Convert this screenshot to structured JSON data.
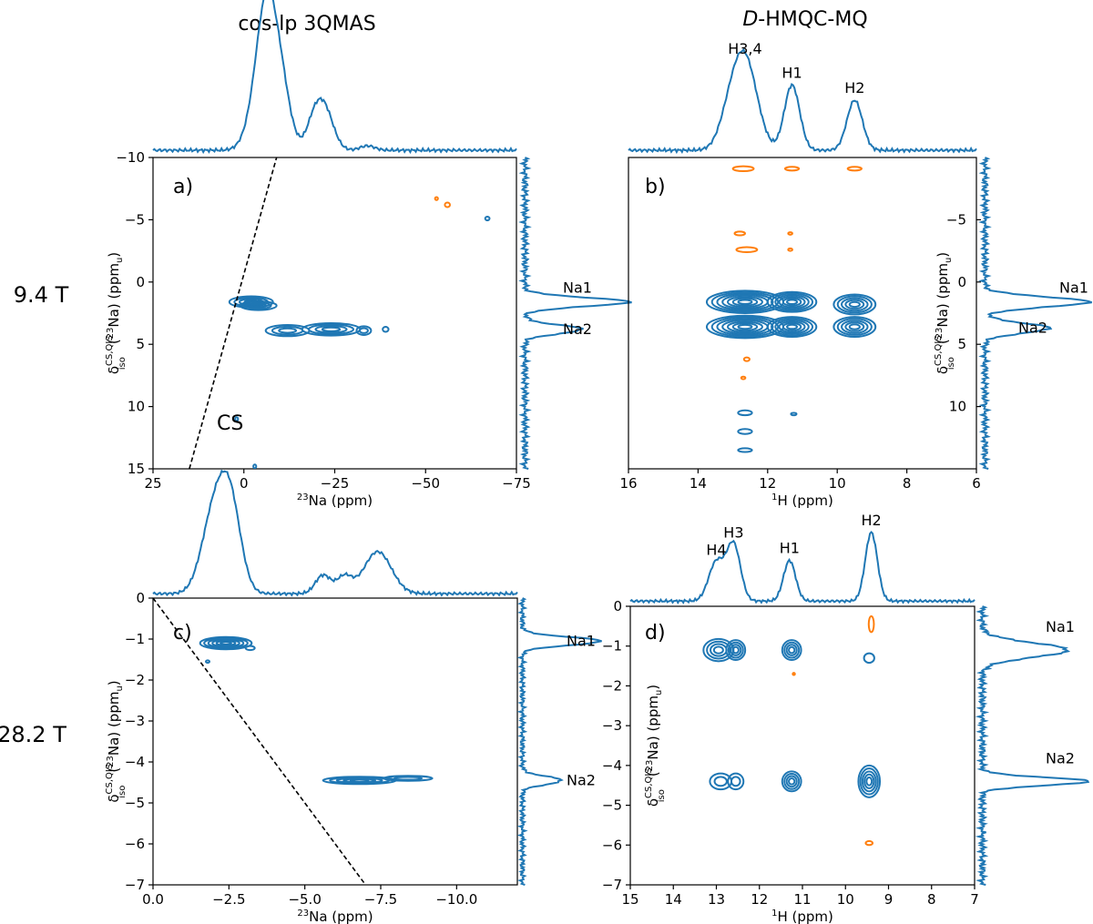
{
  "figure": {
    "column_titles": {
      "left": "cos-lp 3QMAS",
      "right_prefix": "D",
      "right_suffix": "-HMQC-MQ"
    },
    "row_labels": [
      "9.4 T",
      "28.2 T"
    ]
  },
  "colors": {
    "positive": "#1f77b4",
    "negative": "#ff7f0e",
    "cs_line": "#000000"
  },
  "chart_data": [
    {
      "type": "contour",
      "panel": "a)",
      "xlabel_pre": "23",
      "xlabel_post": "Na (ppm)",
      "ylabel_main": "δ",
      "ylabel_sub": "iso",
      "ylabel_sup": "CS,QIS",
      "ylabel_mid": "(",
      "ylabel_iso": "23",
      "ylabel_end": "Na) (ppm",
      "ylabel_unit_sub": "u",
      "ylabel_close": ")",
      "xlim": [
        25,
        -75
      ],
      "ylim": [
        -10,
        15
      ],
      "xticks": [
        "25",
        "0",
        "−25",
        "−50",
        "−75"
      ],
      "xtick_values": [
        25,
        0,
        -25,
        -50,
        -75
      ],
      "yticks": [
        "−10",
        "−5",
        "0",
        "5",
        "10",
        "15"
      ],
      "ytick_values": [
        -10,
        -5,
        0,
        5,
        10,
        15
      ],
      "cs_line": {
        "label": "CS",
        "points": [
          [
            15,
            15
          ],
          [
            -9,
            -10
          ]
        ]
      },
      "peaks": [
        {
          "x": -2,
          "y": 1.6,
          "rx": 6,
          "ry": 0.45,
          "rings": 4,
          "sign": "pos"
        },
        {
          "x": -4,
          "y": 1.9,
          "rx": 5,
          "ry": 0.35,
          "rings": 3,
          "sign": "pos"
        },
        {
          "x": -12,
          "y": 3.9,
          "rx": 6,
          "ry": 0.45,
          "rings": 3,
          "sign": "pos"
        },
        {
          "x": -24,
          "y": 3.8,
          "rx": 8,
          "ry": 0.5,
          "rings": 4,
          "sign": "pos"
        },
        {
          "x": -33,
          "y": 3.9,
          "rx": 2,
          "ry": 0.35,
          "rings": 2,
          "sign": "pos"
        },
        {
          "x": -39,
          "y": 3.8,
          "rx": 0.8,
          "ry": 0.2,
          "rings": 1,
          "sign": "pos"
        },
        {
          "x": 2,
          "y": 11,
          "rx": 0.4,
          "ry": 0.15,
          "rings": 1,
          "sign": "pos"
        },
        {
          "x": -3,
          "y": 14.8,
          "rx": 0.4,
          "ry": 0.15,
          "rings": 1,
          "sign": "pos"
        },
        {
          "x": -67,
          "y": -5.1,
          "rx": 0.6,
          "ry": 0.15,
          "rings": 1,
          "sign": "pos"
        },
        {
          "x": -53,
          "y": -6.7,
          "rx": 0.4,
          "ry": 0.12,
          "rings": 1,
          "sign": "neg"
        },
        {
          "x": -56,
          "y": -6.2,
          "rx": 0.7,
          "ry": 0.18,
          "rings": 1,
          "sign": "neg"
        }
      ],
      "top_projection": {
        "baseline": 0.02,
        "peaks": [
          {
            "x": -6,
            "h": 1.0,
            "w": 2.5
          },
          {
            "x": -9.5,
            "h": 0.88,
            "w": 2.8
          },
          {
            "x": -4,
            "h": 0.45,
            "w": 3
          },
          {
            "x": -22,
            "h": 0.48,
            "w": 2.5
          },
          {
            "x": -19,
            "h": 0.22,
            "w": 2
          },
          {
            "x": -34,
            "h": 0.05,
            "w": 2
          }
        ]
      },
      "side_projection": {
        "peaks": [
          {
            "y": 1.6,
            "h": 1.0,
            "w": 0.35,
            "label": "Na1"
          },
          {
            "y": 3.8,
            "h": 0.55,
            "w": 0.35,
            "label": "Na2"
          }
        ]
      }
    },
    {
      "type": "contour",
      "panel": "b)",
      "xlabel_pre": "1",
      "xlabel_post": "H (ppm)",
      "ylabel_main": "δ",
      "ylabel_sub": "iso",
      "ylabel_sup": "CS,QIS",
      "ylabel_mid": "(",
      "ylabel_iso": "23",
      "ylabel_end": "Na) (ppm",
      "ylabel_unit_sub": "u",
      "ylabel_close": ")",
      "xlim": [
        16,
        6
      ],
      "ylim": [
        -10,
        15
      ],
      "xticks": [
        "16",
        "14",
        "12",
        "10",
        "8",
        "6"
      ],
      "xtick_values": [
        16,
        14,
        12,
        10,
        8,
        6
      ],
      "yticks": [
        "−5",
        "0",
        "5",
        "10"
      ],
      "ytick_values": [
        -5,
        0,
        5,
        10
      ],
      "peaks": [
        {
          "x": 12.65,
          "y": 1.6,
          "rx": 1.1,
          "ry": 0.9,
          "rings": 7,
          "sign": "pos"
        },
        {
          "x": 12.65,
          "y": 3.6,
          "rx": 1.1,
          "ry": 0.9,
          "rings": 7,
          "sign": "pos"
        },
        {
          "x": 11.3,
          "y": 1.6,
          "rx": 0.7,
          "ry": 0.8,
          "rings": 6,
          "sign": "pos"
        },
        {
          "x": 11.3,
          "y": 3.6,
          "rx": 0.7,
          "ry": 0.8,
          "rings": 6,
          "sign": "pos"
        },
        {
          "x": 9.5,
          "y": 1.8,
          "rx": 0.6,
          "ry": 0.8,
          "rings": 5,
          "sign": "pos"
        },
        {
          "x": 9.5,
          "y": 3.6,
          "rx": 0.6,
          "ry": 0.8,
          "rings": 5,
          "sign": "pos"
        },
        {
          "x": 12.65,
          "y": 10.5,
          "rx": 0.2,
          "ry": 0.2,
          "rings": 1,
          "sign": "pos"
        },
        {
          "x": 12.65,
          "y": 12,
          "rx": 0.2,
          "ry": 0.2,
          "rings": 1,
          "sign": "pos"
        },
        {
          "x": 12.65,
          "y": 13.5,
          "rx": 0.2,
          "ry": 0.15,
          "rings": 1,
          "sign": "pos"
        },
        {
          "x": 11.25,
          "y": 10.6,
          "rx": 0.08,
          "ry": 0.1,
          "rings": 1,
          "sign": "pos"
        },
        {
          "x": 12.7,
          "y": -9.1,
          "rx": 0.3,
          "ry": 0.2,
          "rings": 1,
          "sign": "neg"
        },
        {
          "x": 11.3,
          "y": -9.1,
          "rx": 0.2,
          "ry": 0.15,
          "rings": 1,
          "sign": "neg"
        },
        {
          "x": 9.5,
          "y": -9.1,
          "rx": 0.2,
          "ry": 0.15,
          "rings": 1,
          "sign": "neg"
        },
        {
          "x": 12.8,
          "y": -3.9,
          "rx": 0.15,
          "ry": 0.15,
          "rings": 1,
          "sign": "neg"
        },
        {
          "x": 12.6,
          "y": -2.6,
          "rx": 0.3,
          "ry": 0.2,
          "rings": 1,
          "sign": "neg"
        },
        {
          "x": 11.35,
          "y": -3.9,
          "rx": 0.06,
          "ry": 0.1,
          "rings": 1,
          "sign": "neg"
        },
        {
          "x": 11.35,
          "y": -2.6,
          "rx": 0.06,
          "ry": 0.1,
          "rings": 1,
          "sign": "neg"
        },
        {
          "x": 12.6,
          "y": 6.2,
          "rx": 0.08,
          "ry": 0.15,
          "rings": 1,
          "sign": "neg"
        },
        {
          "x": 12.7,
          "y": 7.7,
          "rx": 0.06,
          "ry": 0.1,
          "rings": 1,
          "sign": "neg"
        }
      ],
      "top_projection": {
        "baseline": 0.02,
        "peaks": [
          {
            "x": 12.65,
            "h": 1.0,
            "w": 0.35,
            "label": "H3,4"
          },
          {
            "x": 13.1,
            "h": 0.3,
            "w": 0.3
          },
          {
            "x": 11.3,
            "h": 0.73,
            "w": 0.22,
            "label": "H1"
          },
          {
            "x": 9.5,
            "h": 0.56,
            "w": 0.22,
            "label": "H2"
          }
        ]
      },
      "side_projection": {
        "peaks": [
          {
            "y": 1.6,
            "h": 1.0,
            "w": 0.4,
            "label": "Na1"
          },
          {
            "y": 3.7,
            "h": 0.62,
            "w": 0.4,
            "label": "Na2"
          }
        ]
      }
    },
    {
      "type": "contour",
      "panel": "c)",
      "xlabel_pre": "23",
      "xlabel_post": "Na (ppm)",
      "ylabel_main": "δ",
      "ylabel_sub": "iso",
      "ylabel_sup": "CS,QIS",
      "ylabel_mid": "(",
      "ylabel_iso": "23",
      "ylabel_end": "Na) (ppm",
      "ylabel_unit_sub": "u",
      "ylabel_close": ")",
      "xlim": [
        0,
        -12
      ],
      "ylim": [
        0,
        -7
      ],
      "xticks": [
        "0.0",
        "−2.5",
        "−5.0",
        "−7.5",
        "−10.0"
      ],
      "xtick_values": [
        0,
        -2.5,
        -5,
        -7.5,
        -10
      ],
      "yticks": [
        "0",
        "−1",
        "−2",
        "−3",
        "−4",
        "−5",
        "−6",
        "−7"
      ],
      "ytick_values": [
        0,
        -1,
        -2,
        -3,
        -4,
        -5,
        -6,
        -7
      ],
      "cs_line": {
        "label": "",
        "points": [
          [
            0,
            0
          ],
          [
            -7,
            -7
          ]
        ]
      },
      "peaks": [
        {
          "x": -2.4,
          "y": -1.1,
          "rx": 0.85,
          "ry": 0.15,
          "rings": 6,
          "sign": "pos"
        },
        {
          "x": -3.2,
          "y": -1.22,
          "rx": 0.15,
          "ry": 0.05,
          "rings": 1,
          "sign": "pos"
        },
        {
          "x": -6.8,
          "y": -4.45,
          "rx": 1.2,
          "ry": 0.09,
          "rings": 5,
          "sign": "pos"
        },
        {
          "x": -8.4,
          "y": -4.4,
          "rx": 0.8,
          "ry": 0.06,
          "rings": 2,
          "sign": "pos"
        },
        {
          "x": -1.8,
          "y": -1.55,
          "rx": 0.06,
          "ry": 0.03,
          "rings": 1,
          "sign": "pos"
        }
      ],
      "top_projection": {
        "baseline": 0.02,
        "peaks": [
          {
            "x": -2.0,
            "h": 0.92,
            "w": 0.4
          },
          {
            "x": -2.55,
            "h": 0.98,
            "w": 0.35
          },
          {
            "x": -5.6,
            "h": 0.22,
            "w": 0.25
          },
          {
            "x": -6.3,
            "h": 0.2,
            "w": 0.25
          },
          {
            "x": -7.4,
            "h": 0.5,
            "w": 0.45
          }
        ]
      },
      "side_projection": {
        "peaks": [
          {
            "y": -1.05,
            "h": 1.0,
            "w": 0.1,
            "label": "Na1"
          },
          {
            "y": -4.45,
            "h": 0.5,
            "w": 0.1,
            "label": "Na2"
          }
        ]
      }
    },
    {
      "type": "contour",
      "panel": "d)",
      "xlabel_pre": "1",
      "xlabel_post": "H (ppm)",
      "ylabel_main": "δ",
      "ylabel_sub": "iso",
      "ylabel_sup": "CS,QIS",
      "ylabel_mid": "(",
      "ylabel_iso": "23",
      "ylabel_end": "Na) (ppm",
      "ylabel_unit_sub": "u",
      "ylabel_close": ")",
      "xlim": [
        15,
        7
      ],
      "ylim": [
        0,
        -7
      ],
      "xticks": [
        "15",
        "14",
        "13",
        "12",
        "11",
        "10",
        "9",
        "8",
        "7"
      ],
      "xtick_values": [
        15,
        14,
        13,
        12,
        11,
        10,
        9,
        8,
        7
      ],
      "yticks": [
        "0",
        "−1",
        "−2",
        "−3",
        "−4",
        "−5",
        "−6",
        "−7"
      ],
      "ytick_values": [
        0,
        -1,
        -2,
        -3,
        -4,
        -5,
        -6,
        -7
      ],
      "peaks": [
        {
          "x": 12.95,
          "y": -1.1,
          "rx": 0.35,
          "ry": 0.28,
          "rings": 4,
          "sign": "pos"
        },
        {
          "x": 12.55,
          "y": -1.1,
          "rx": 0.22,
          "ry": 0.25,
          "rings": 4,
          "sign": "pos"
        },
        {
          "x": 11.25,
          "y": -1.1,
          "rx": 0.22,
          "ry": 0.25,
          "rings": 4,
          "sign": "pos"
        },
        {
          "x": 9.45,
          "y": -1.3,
          "rx": 0.12,
          "ry": 0.12,
          "rings": 1,
          "sign": "pos"
        },
        {
          "x": 12.9,
          "y": -4.4,
          "rx": 0.25,
          "ry": 0.2,
          "rings": 2,
          "sign": "pos"
        },
        {
          "x": 12.55,
          "y": -4.4,
          "rx": 0.18,
          "ry": 0.2,
          "rings": 2,
          "sign": "pos"
        },
        {
          "x": 11.25,
          "y": -4.4,
          "rx": 0.22,
          "ry": 0.25,
          "rings": 4,
          "sign": "pos"
        },
        {
          "x": 9.45,
          "y": -4.4,
          "rx": 0.25,
          "ry": 0.4,
          "rings": 5,
          "sign": "pos"
        },
        {
          "x": 9.45,
          "y": -5.95,
          "rx": 0.08,
          "ry": 0.05,
          "rings": 1,
          "sign": "neg"
        },
        {
          "x": 9.4,
          "y": -0.45,
          "rx": 0.06,
          "ry": 0.2,
          "rings": 1,
          "sign": "neg"
        },
        {
          "x": 11.2,
          "y": -1.7,
          "rx": 0.02,
          "ry": 0.02,
          "rings": 1,
          "sign": "neg"
        }
      ],
      "top_projection": {
        "baseline": 0.02,
        "peaks": [
          {
            "x": 13.0,
            "h": 0.5,
            "w": 0.18,
            "label": "H4"
          },
          {
            "x": 12.6,
            "h": 0.72,
            "w": 0.16,
            "label": "H3"
          },
          {
            "x": 11.3,
            "h": 0.52,
            "w": 0.14,
            "label": "H1"
          },
          {
            "x": 9.4,
            "h": 0.88,
            "w": 0.14,
            "label": "H2"
          }
        ]
      },
      "side_projection": {
        "peaks": [
          {
            "y": -1.1,
            "h": 0.8,
            "w": 0.18,
            "label": "Na1"
          },
          {
            "y": -4.4,
            "h": 1.0,
            "w": 0.1,
            "label": "Na2"
          }
        ]
      }
    }
  ]
}
